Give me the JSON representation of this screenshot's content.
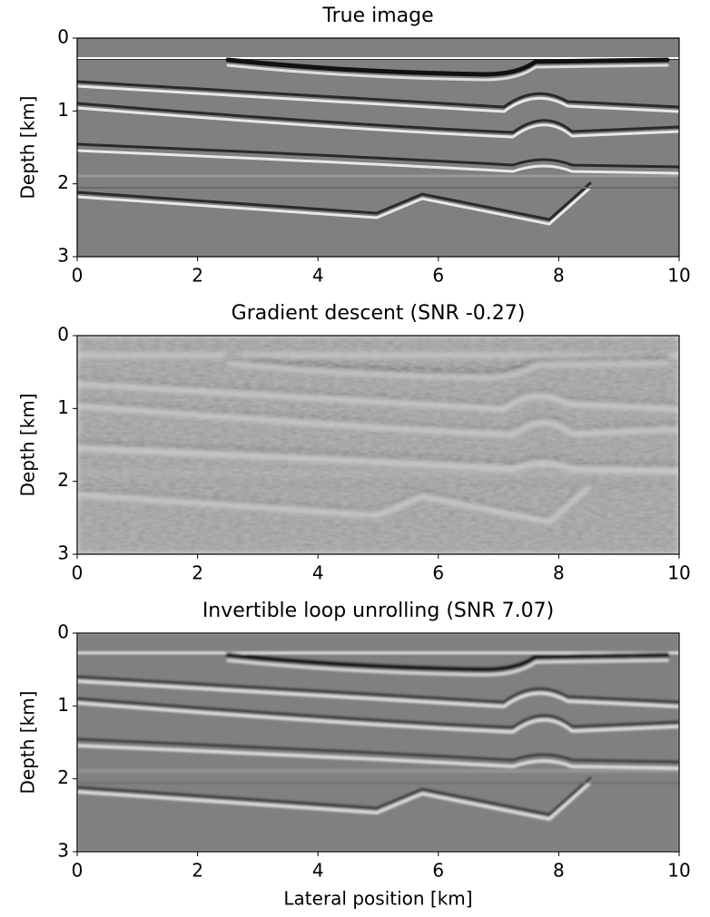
{
  "chart_data": [
    {
      "type": "image",
      "title": "True image",
      "ylabel": "Depth [km]",
      "xlim": [
        0,
        10
      ],
      "ylim": [
        3,
        0
      ],
      "xticks": [
        0,
        2,
        4,
        6,
        8,
        10
      ],
      "yticks": [
        0,
        1,
        2,
        3
      ]
    },
    {
      "type": "image",
      "title": "Gradient descent (SNR -0.27)",
      "ylabel": "Depth [km]",
      "xlim": [
        0,
        10
      ],
      "ylim": [
        3,
        0
      ],
      "xticks": [
        0,
        2,
        4,
        6,
        8,
        10
      ],
      "yticks": [
        0,
        1,
        2,
        3
      ]
    },
    {
      "type": "image",
      "title": "Invertible loop unrolling (SNR 7.07)",
      "ylabel": "Depth [km]",
      "xlabel": "Lateral position [km]",
      "xlim": [
        0,
        10
      ],
      "ylim": [
        3,
        0
      ],
      "xticks": [
        0,
        2,
        4,
        6,
        8,
        10
      ],
      "yticks": [
        0,
        1,
        2,
        3
      ]
    }
  ]
}
